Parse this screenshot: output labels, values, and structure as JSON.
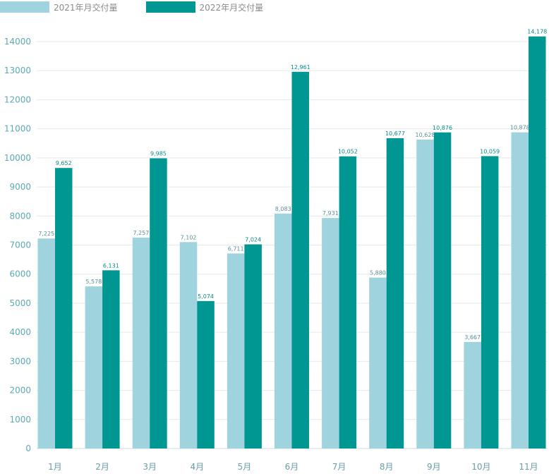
{
  "chart_data": {
    "type": "bar",
    "categories": [
      "1月",
      "2月",
      "3月",
      "4月",
      "5月",
      "6月",
      "7月",
      "8月",
      "9月",
      "10月",
      "11月"
    ],
    "series": [
      {
        "name": "2021年月交付量",
        "color": "#9fd3de",
        "values": [
          7225,
          5578,
          7257,
          7102,
          6711,
          8083,
          7931,
          5880,
          10628,
          3667,
          10878
        ],
        "labels": [
          "7,225",
          "5,578",
          "7,257",
          "7,102",
          "6,711",
          "8,083",
          "7,931",
          "5,880",
          "10,628",
          "3,667",
          "10,878"
        ]
      },
      {
        "name": "2022年月交付量",
        "color": "#009792",
        "values": [
          9652,
          6131,
          9985,
          5074,
          7024,
          12961,
          10052,
          10677,
          10876,
          10059,
          14178
        ],
        "labels": [
          "9,652",
          "6,131",
          "9,985",
          "5,074",
          "7,024",
          "12,961",
          "10,052",
          "10,677",
          "10,876",
          "10,059",
          "14,178"
        ]
      }
    ],
    "yticks": [
      "0",
      "1000",
      "2000",
      "3000",
      "4000",
      "5000",
      "6000",
      "7000",
      "8000",
      "9000",
      "10000",
      "11000",
      "12000",
      "13000",
      "14000"
    ],
    "ylim": [
      0,
      14000
    ],
    "grid": true,
    "legend_position": "top-left",
    "title": "",
    "xlabel": "",
    "ylabel": ""
  }
}
